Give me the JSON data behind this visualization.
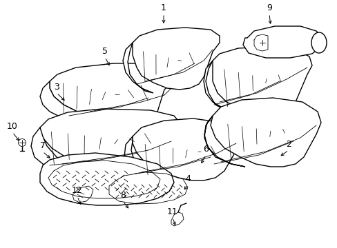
{
  "background_color": "#ffffff",
  "line_color": "#000000",
  "label_color": "#000000",
  "lw_main": 1.0,
  "lw_detail": 0.6,
  "lw_light": 0.5,
  "labels_info": [
    [
      "1",
      237,
      20,
      237,
      37
    ],
    [
      "2",
      418,
      218,
      404,
      228
    ],
    [
      "3",
      82,
      135,
      96,
      148
    ],
    [
      "4",
      272,
      268,
      265,
      278
    ],
    [
      "5",
      152,
      83,
      160,
      98
    ],
    [
      "6",
      298,
      225,
      290,
      240
    ],
    [
      "7",
      62,
      220,
      75,
      232
    ],
    [
      "8",
      178,
      292,
      188,
      305
    ],
    [
      "9",
      390,
      20,
      392,
      38
    ],
    [
      "10",
      18,
      192,
      30,
      207
    ],
    [
      "11",
      250,
      316,
      255,
      330
    ],
    [
      "12",
      112,
      285,
      118,
      300
    ]
  ]
}
